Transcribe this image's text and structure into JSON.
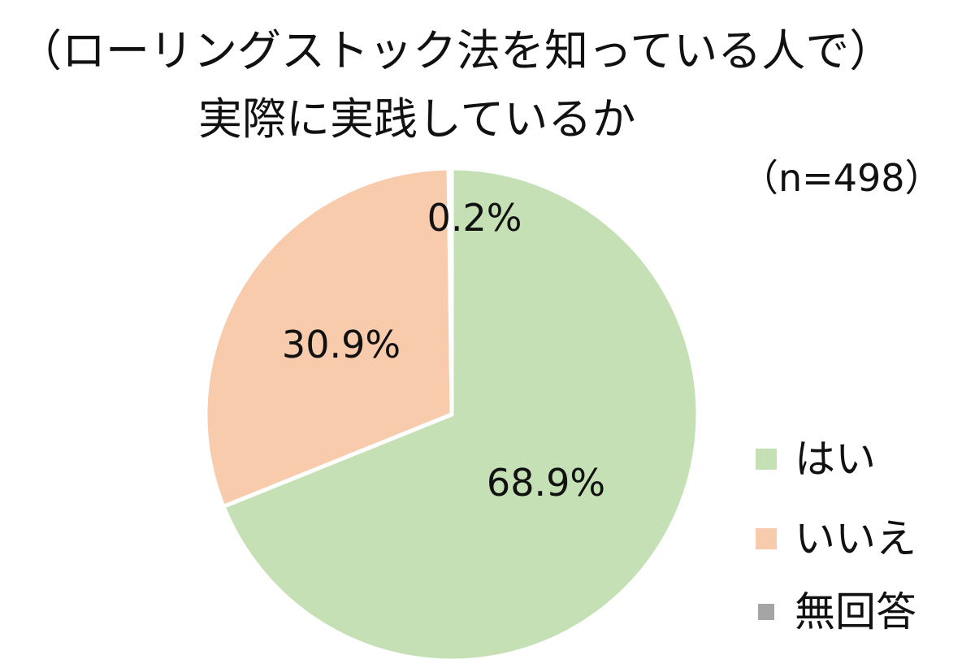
{
  "chart_data": {
    "type": "pie",
    "title": [
      "（ローリングストック法を知っている人で）",
      "実際に実践しているか"
    ],
    "subtitle": "（n=498）",
    "slices": [
      {
        "name": "はい",
        "value": 68.9,
        "label": "68.9%",
        "color": "#c5e0b4"
      },
      {
        "name": "いいえ",
        "value": 30.9,
        "label": "30.9%",
        "color": "#f8cbad"
      },
      {
        "name": "無回答",
        "value": 0.2,
        "label": "0.2%",
        "color": "#a5a5a5"
      }
    ],
    "start_angle": "12 o'clock",
    "direction": "clockwise",
    "legend_position": "bottom-right",
    "slice_border_color": "#ffffff"
  }
}
